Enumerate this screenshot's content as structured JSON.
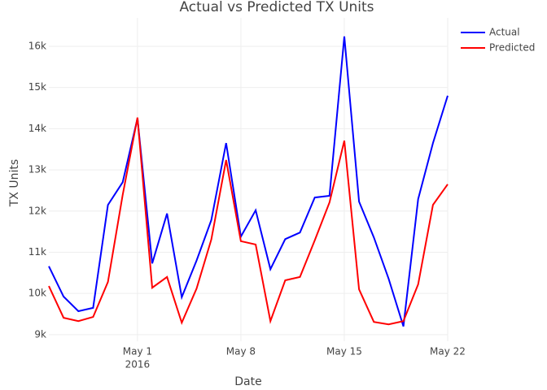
{
  "chart_data": {
    "type": "line",
    "title": "Actual vs Predicted TX Units",
    "x_label": "Date",
    "y_label": "TX Units",
    "x": [
      "2016-04-25",
      "2016-04-26",
      "2016-04-27",
      "2016-04-28",
      "2016-04-29",
      "2016-04-30",
      "2016-05-01",
      "2016-05-02",
      "2016-05-03",
      "2016-05-04",
      "2016-05-05",
      "2016-05-06",
      "2016-05-07",
      "2016-05-08",
      "2016-05-09",
      "2016-05-10",
      "2016-05-11",
      "2016-05-12",
      "2016-05-13",
      "2016-05-14",
      "2016-05-15",
      "2016-05-16",
      "2016-05-17",
      "2016-05-18",
      "2016-05-19",
      "2016-05-20",
      "2016-05-21",
      "2016-05-22"
    ],
    "series": [
      {
        "name": "Actual",
        "color": "#0000ff",
        "values": [
          10660,
          9925,
          9570,
          9650,
          12150,
          12700,
          14250,
          10730,
          11940,
          9910,
          10800,
          11780,
          13650,
          11380,
          12020,
          10590,
          11320,
          11480,
          12330,
          12370,
          16240,
          12230,
          11360,
          10360,
          9200,
          12290,
          13650,
          14800
        ]
      },
      {
        "name": "Predicted",
        "color": "#ff0000",
        "values": [
          10180,
          9410,
          9330,
          9430,
          10280,
          12390,
          14270,
          10140,
          10400,
          9290,
          10120,
          11310,
          13240,
          11270,
          11190,
          9330,
          10320,
          10400,
          11290,
          12210,
          13710,
          10100,
          9310,
          9250,
          9330,
          10220,
          12150,
          12650
        ]
      }
    ],
    "xlim": [
      "2016-04-25",
      "2016-05-22"
    ],
    "xticks": [
      {
        "value": "2016-05-01",
        "label": "May 1"
      },
      {
        "value": "2016-05-08",
        "label": "May 8"
      },
      {
        "value": "2016-05-15",
        "label": "May 15"
      },
      {
        "value": "2016-05-22",
        "label": "May 22"
      }
    ],
    "xtick_year": "2016",
    "ylim": [
      8840,
      16690
    ],
    "yticks": [
      {
        "value": 9000,
        "label": "9k"
      },
      {
        "value": 10000,
        "label": "10k"
      },
      {
        "value": 11000,
        "label": "11k"
      },
      {
        "value": 12000,
        "label": "12k"
      },
      {
        "value": 13000,
        "label": "13k"
      },
      {
        "value": 14000,
        "label": "14k"
      },
      {
        "value": 15000,
        "label": "15k"
      },
      {
        "value": 16000,
        "label": "16k"
      }
    ],
    "grid": true,
    "legend": "top-right"
  }
}
